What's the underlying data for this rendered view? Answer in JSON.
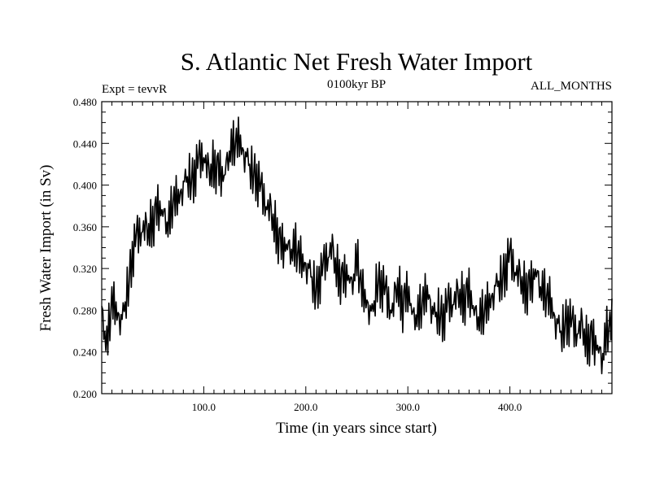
{
  "chart_data": {
    "type": "line",
    "title": "S. Atlantic Net Fresh Water Import",
    "subtitle_left": "Expt = tevvR",
    "subtitle_center": "0100kyr BP",
    "subtitle_right": "ALL_MONTHS",
    "xlabel": "Time (in years since start)",
    "ylabel": "Fresh Water Import (in Sv)",
    "xlim": [
      0,
      500
    ],
    "ylim": [
      0.2,
      0.48
    ],
    "x_ticks": [
      100,
      200,
      300,
      400
    ],
    "x_tick_labels": [
      "100.0",
      "200.0",
      "300.0",
      "400.0"
    ],
    "y_ticks": [
      0.2,
      0.24,
      0.28,
      0.32,
      0.36,
      0.4,
      0.44,
      0.48
    ],
    "y_tick_labels": [
      "0.200",
      "0.240",
      "0.280",
      "0.320",
      "0.360",
      "0.400",
      "0.440",
      "0.480"
    ],
    "grid": false,
    "line_color": "#000000",
    "series": [
      {
        "x": [
          0,
          5,
          10,
          15,
          20,
          25,
          30,
          35,
          40,
          45,
          50,
          55,
          60,
          65,
          70,
          75,
          80,
          85,
          90,
          95,
          100,
          105,
          110,
          115,
          120,
          125,
          130,
          135,
          140,
          145,
          150,
          155,
          160,
          165,
          170,
          175,
          180,
          185,
          190,
          195,
          200,
          205,
          210,
          215,
          220,
          225,
          230,
          235,
          240,
          245,
          250,
          255,
          260,
          265,
          270,
          275,
          280,
          285,
          290,
          295,
          300,
          305,
          310,
          315,
          320,
          325,
          330,
          335,
          340,
          345,
          350,
          355,
          360,
          365,
          370,
          375,
          380,
          385,
          390,
          395,
          400,
          405,
          410,
          415,
          420,
          425,
          430,
          435,
          440,
          445,
          450,
          455,
          460,
          465,
          470,
          475,
          480,
          485,
          490,
          495,
          500
        ],
        "values": [
          0.275,
          0.245,
          0.29,
          0.28,
          0.27,
          0.3,
          0.33,
          0.35,
          0.36,
          0.355,
          0.365,
          0.38,
          0.37,
          0.36,
          0.385,
          0.39,
          0.4,
          0.41,
          0.405,
          0.42,
          0.43,
          0.41,
          0.42,
          0.415,
          0.405,
          0.43,
          0.44,
          0.445,
          0.43,
          0.42,
          0.41,
          0.395,
          0.385,
          0.375,
          0.36,
          0.345,
          0.34,
          0.335,
          0.34,
          0.33,
          0.325,
          0.315,
          0.3,
          0.31,
          0.33,
          0.34,
          0.32,
          0.31,
          0.315,
          0.3,
          0.33,
          0.3,
          0.29,
          0.275,
          0.31,
          0.3,
          0.29,
          0.28,
          0.305,
          0.285,
          0.3,
          0.27,
          0.275,
          0.29,
          0.3,
          0.275,
          0.28,
          0.27,
          0.285,
          0.29,
          0.295,
          0.29,
          0.3,
          0.275,
          0.27,
          0.28,
          0.29,
          0.3,
          0.31,
          0.315,
          0.33,
          0.32,
          0.31,
          0.3,
          0.305,
          0.315,
          0.3,
          0.295,
          0.29,
          0.27,
          0.26,
          0.27,
          0.265,
          0.26,
          0.265,
          0.25,
          0.255,
          0.245,
          0.23,
          0.26,
          0.27
        ],
        "jitter": [
          0.0,
          0.012,
          -0.01,
          0.015,
          -0.014,
          0.01,
          -0.012,
          0.018,
          -0.008,
          0.006,
          -0.016,
          0.011,
          -0.007,
          0.013,
          -0.015,
          0.009,
          -0.011,
          0.017,
          -0.006,
          0.012,
          -0.013,
          0.008,
          -0.018,
          0.014,
          -0.009,
          0.016,
          -0.012,
          0.01,
          -0.017,
          0.007,
          -0.011,
          0.015,
          -0.008,
          0.013,
          -0.014,
          0.009,
          -0.01,
          0.012,
          -0.016,
          0.006,
          -0.013,
          0.017,
          -0.009,
          0.011,
          -0.015,
          0.008,
          -0.012,
          0.014,
          -0.007,
          0.016,
          -0.011,
          0.01,
          -0.018,
          0.013,
          -0.006,
          0.012,
          -0.014,
          0.009,
          -0.01,
          0.015,
          -0.016
        ]
      }
    ]
  }
}
